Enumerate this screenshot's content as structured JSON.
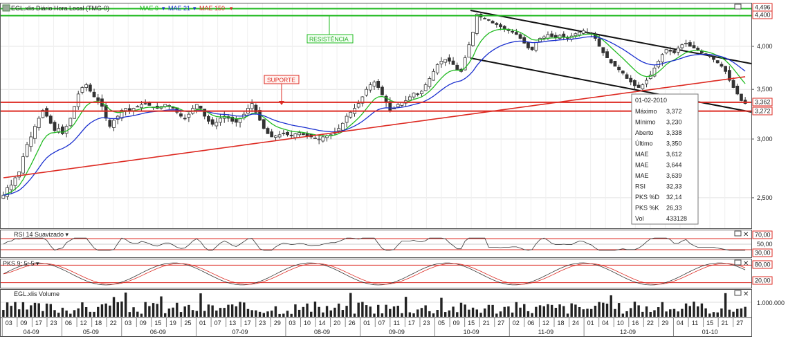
{
  "header": {
    "title": "EGL.xlis Diário Hora Local (TMG-0)",
    "mae_fast": {
      "label": "MAE 9",
      "color": "#22bb22"
    },
    "mae_mid": {
      "label": "MAE 21",
      "color": "#1a2fcf"
    },
    "mae_slow": {
      "label": "MAE 150",
      "color": "#dd2a22"
    }
  },
  "annotations": {
    "resistencia": "RESISTÊNCIA",
    "suporte": "SUPORTE"
  },
  "level_labels": {
    "l4496": "4,496",
    "l4400": "4,400",
    "l3362": "3,362",
    "l3272": "3,272"
  },
  "info_box": {
    "date": "01-02-2010",
    "rows": [
      {
        "label": "Máximo",
        "value": "3,372",
        "color": "#222222"
      },
      {
        "label": "Mínimo",
        "value": "3,230",
        "color": "#222222"
      },
      {
        "label": "Aberto",
        "value": "3,338",
        "color": "#222222"
      },
      {
        "label": "Último",
        "value": "3,350",
        "color": "#222222"
      },
      {
        "label": "MAE",
        "value": "3,612",
        "color": "#22bb22"
      },
      {
        "label": "MAE",
        "value": "3,644",
        "color": "#1a2fcf"
      },
      {
        "label": "MAE",
        "value": "3,639",
        "color": "#dd2a22"
      },
      {
        "label": "RSI",
        "value": "32,33",
        "color": "#222222"
      },
      {
        "label": "PKS %D",
        "value": "32,14",
        "color": "#dd2a22"
      },
      {
        "label": "PKS %K",
        "value": "26,33",
        "color": "#222222"
      },
      {
        "label": "Vol",
        "value": "433128",
        "color": "#222222"
      }
    ]
  },
  "rsi_panel": {
    "title": "RSI 14 Suavizado ▾",
    "levels": [
      "70,00",
      "50,00",
      "30,00"
    ]
  },
  "pks_panel": {
    "title": "PKS 9; 5; 5 ▾",
    "levels": [
      "80,00",
      "20,00"
    ]
  },
  "volume_panel": {
    "title": "EGL.xlis Volume",
    "level": "1.000.000"
  },
  "chart_data": {
    "type": "candlestick",
    "price_axis": {
      "ticks": [
        "4,000",
        "3,500",
        "3,000",
        "2,500"
      ],
      "tick_values": [
        4.0,
        3.5,
        3.0,
        2.5
      ],
      "scale": "log",
      "range": [
        2.34,
        4.62
      ]
    },
    "series": [
      {
        "name": "MAE 9",
        "color": "#22bb22"
      },
      {
        "name": "MAE 21",
        "color": "#1a2fcf"
      },
      {
        "name": "MAE 150",
        "color": "#dd2a22"
      }
    ],
    "horizontal_levels": [
      {
        "value": 4.496,
        "color": "#22bb22"
      },
      {
        "value": 4.4,
        "color": "#22bb22"
      },
      {
        "value": 3.362,
        "color": "#dd2a22"
      },
      {
        "value": 3.272,
        "color": "#dd2a22"
      }
    ],
    "trend_channel": {
      "upper": [
        [
          "09-09",
          4.47
        ],
        [
          "02-10",
          3.8
        ]
      ],
      "lower": [
        [
          "09-09",
          3.87
        ],
        [
          "02-10",
          3.27
        ]
      ]
    },
    "x_day_ticks": [
      "03",
      "09",
      "17",
      "23",
      "06",
      "12",
      "18",
      "22",
      "03",
      "09",
      "15",
      "19",
      "25",
      "01",
      "07",
      "13",
      "17",
      "23",
      "29",
      "03",
      "10",
      "14",
      "20",
      "26",
      "01",
      "07",
      "11",
      "17",
      "23",
      "05",
      "09",
      "15",
      "21",
      "27",
      "02",
      "06",
      "12",
      "18",
      "24",
      "01",
      "04",
      "10",
      "16",
      "22",
      "29",
      "04",
      "11",
      "15",
      "21",
      "27"
    ],
    "x_month_ticks": [
      "04-09",
      "05-09",
      "06-09",
      "07-09",
      "08-09",
      "09-09",
      "10-09",
      "11-09",
      "12-09",
      "01-10"
    ],
    "close": [
      2.52,
      2.58,
      2.6,
      2.66,
      2.71,
      2.84,
      2.95,
      3.02,
      3.12,
      3.2,
      3.28,
      3.22,
      3.15,
      3.08,
      3.1,
      3.05,
      3.12,
      3.2,
      3.32,
      3.45,
      3.52,
      3.55,
      3.48,
      3.42,
      3.38,
      3.32,
      3.2,
      3.12,
      3.18,
      3.22,
      3.28,
      3.3,
      3.27,
      3.3,
      3.32,
      3.34,
      3.35,
      3.33,
      3.31,
      3.3,
      3.32,
      3.34,
      3.33,
      3.3,
      3.26,
      3.22,
      3.2,
      3.24,
      3.3,
      3.34,
      3.3,
      3.22,
      3.17,
      3.14,
      3.16,
      3.2,
      3.22,
      3.2,
      3.17,
      3.16,
      3.2,
      3.24,
      3.3,
      3.35,
      3.26,
      3.18,
      3.1,
      3.05,
      3.02,
      3.03,
      3.04,
      3.05,
      3.04,
      3.03,
      3.05,
      3.06,
      3.04,
      3.03,
      3.02,
      3.01,
      3.0,
      3.02,
      3.03,
      3.04,
      3.06,
      3.1,
      3.15,
      3.22,
      3.26,
      3.3,
      3.35,
      3.42,
      3.5,
      3.55,
      3.58,
      3.52,
      3.44,
      3.36,
      3.28,
      3.3,
      3.34,
      3.36,
      3.38,
      3.42,
      3.46,
      3.45,
      3.48,
      3.55,
      3.62,
      3.7,
      3.78,
      3.82,
      3.84,
      3.82,
      3.78,
      3.72,
      3.7,
      3.86,
      4.02,
      4.18,
      4.42,
      4.38,
      4.36,
      4.34,
      4.3,
      4.28,
      4.25,
      4.22,
      4.2,
      4.18,
      4.15,
      4.1,
      4.04,
      3.98,
      3.96,
      4.05,
      4.1,
      4.12,
      4.15,
      4.12,
      4.11,
      4.14,
      4.12,
      4.1,
      4.13,
      4.16,
      4.18,
      4.2,
      4.18,
      4.16,
      4.1,
      4.0,
      3.92,
      3.86,
      3.8,
      3.76,
      3.72,
      3.68,
      3.62,
      3.58,
      3.54,
      3.52,
      3.55,
      3.6,
      3.66,
      3.74,
      3.82,
      3.9,
      3.96,
      3.94,
      3.92,
      3.98,
      4.02,
      4.04,
      4.0,
      3.98,
      3.96,
      3.92,
      3.9,
      3.88,
      3.84,
      3.8,
      3.76,
      3.7,
      3.6,
      3.52,
      3.45,
      3.38,
      3.35
    ],
    "rsi_levels": [
      70,
      50,
      30
    ],
    "pks_levels": [
      80,
      20
    ],
    "volume_reference": 1000000
  }
}
